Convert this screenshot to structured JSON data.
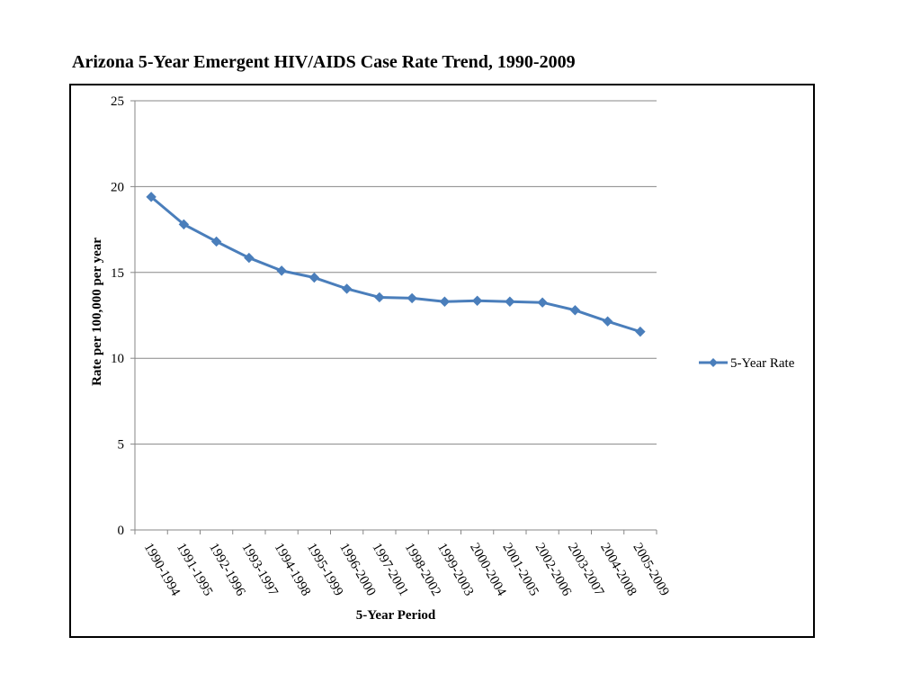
{
  "page": {
    "title": "Arizona 5-Year Emergent HIV/AIDS Case Rate Trend, 1990-2009"
  },
  "chart_data": {
    "type": "line",
    "title": "Arizona 5-Year Emergent HIV/AIDS Case Rate Trend, 1990-2009",
    "xlabel": "5-Year Period",
    "ylabel": "Rate per 100,000 per year",
    "ylim": [
      0,
      25
    ],
    "yticks": [
      0,
      5,
      10,
      15,
      20,
      25
    ],
    "grid": "horizontal",
    "legend_position": "right",
    "categories": [
      "1990-1994",
      "1991-1995",
      "1992-1996",
      "1993-1997",
      "1994-1998",
      "1995-1999",
      "1996-2000",
      "1997-2001",
      "1998-2002",
      "1999-2003",
      "2000-2004",
      "2001-2005",
      "2002-2006",
      "2003-2007",
      "2004-2008",
      "2005-2009"
    ],
    "series": [
      {
        "name": "5-Year Rate",
        "color": "#4a7ebb",
        "marker": "diamond",
        "values": [
          19.4,
          17.8,
          16.8,
          15.85,
          15.1,
          14.7,
          14.05,
          13.55,
          13.5,
          13.3,
          13.35,
          13.3,
          13.25,
          12.8,
          12.15,
          11.55
        ]
      }
    ]
  }
}
